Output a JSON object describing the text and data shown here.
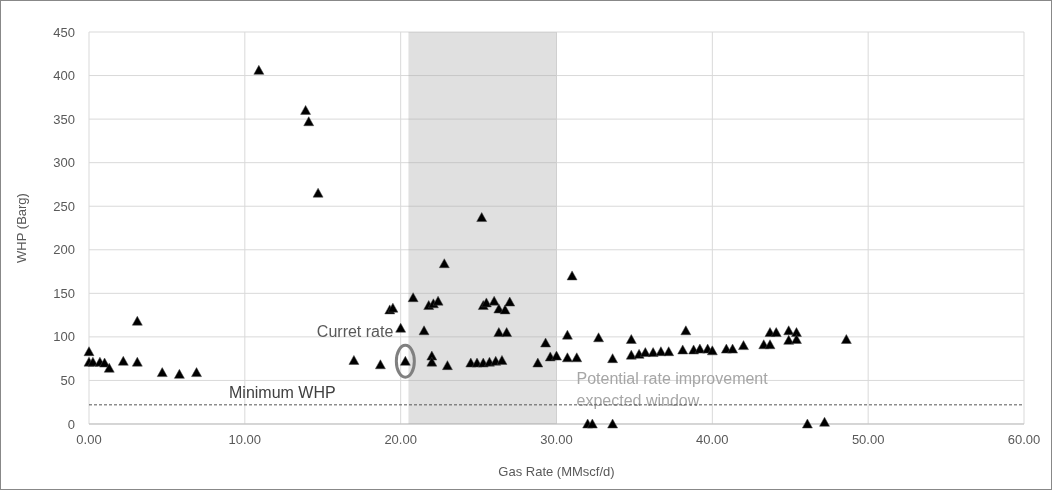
{
  "chart_data": {
    "type": "scatter",
    "xlabel": "Gas Rate (MMscf/d)",
    "ylabel": "WHP (Barg)",
    "xlim": [
      0,
      60
    ],
    "xticks": [
      {
        "value": 0,
        "label": "0.00"
      },
      {
        "value": 10,
        "label": "10.00"
      },
      {
        "value": 20,
        "label": "20.00"
      },
      {
        "value": 30,
        "label": "30.00"
      },
      {
        "value": 40,
        "label": "40.00"
      },
      {
        "value": 50,
        "label": "50.00"
      },
      {
        "value": 60,
        "label": "60.00"
      }
    ],
    "ylim": [
      0,
      450
    ],
    "yticks": [
      0,
      50,
      100,
      150,
      200,
      250,
      300,
      350,
      400,
      450
    ],
    "grid": true,
    "marker": "triangle",
    "series": [
      {
        "color": "#000000",
        "x": [
          0,
          0,
          0.25,
          0.7,
          1,
          1.3,
          2.2,
          3.1,
          3.1,
          4.7,
          5.8,
          6.9,
          10.9,
          13.9,
          14.1,
          14.7,
          17,
          18.7,
          19.3,
          19.5,
          20,
          20.3,
          20.8,
          21.5,
          21.8,
          22.1,
          22.4,
          22,
          22,
          23,
          22.8,
          24.5,
          24.9,
          25.3,
          25.7,
          26.1,
          26.5,
          25.2,
          25.3,
          25.5,
          26,
          26.3,
          26.7,
          27,
          26.3,
          26.8,
          28.8,
          29.3,
          29.6,
          30,
          30.7,
          30.7,
          31,
          31.3,
          32,
          32.3,
          33.6,
          32.7,
          33.6,
          34.8,
          34.8,
          35.3,
          35.7,
          36.2,
          36.7,
          37.2,
          38.3,
          38.1,
          38.8,
          39.2,
          39.7,
          40,
          40.9,
          41.3,
          42,
          43.3,
          43.7,
          43.7,
          44.1,
          44.9,
          45.4,
          44.9,
          45.4,
          46.1,
          47.2,
          48.6
        ],
        "values": [
          83,
          71,
          71,
          71,
          70,
          64,
          72,
          118,
          71,
          59,
          57,
          59,
          406,
          360,
          347,
          265,
          73,
          68,
          131,
          133,
          110,
          72,
          145,
          107,
          136,
          138,
          141,
          78,
          71,
          67,
          184,
          70,
          70,
          70,
          71,
          72,
          73,
          237,
          136,
          139,
          141,
          132,
          131,
          140,
          105,
          105,
          70,
          93,
          77,
          78,
          76,
          102,
          170,
          76,
          0,
          0,
          0,
          99,
          75,
          97,
          79,
          80,
          82,
          82,
          83,
          83,
          107,
          85,
          85,
          86,
          86,
          84,
          86,
          86,
          90,
          91,
          91,
          105,
          105,
          107,
          105,
          96,
          97,
          0,
          2,
          97
        ]
      }
    ],
    "ref_lines": [
      {
        "axis": "y",
        "value": 22,
        "label": "Minimum WHP",
        "line_style": "dashed",
        "color": "#555555"
      }
    ],
    "bands": [
      {
        "axis": "x",
        "from": 20.5,
        "to": 30,
        "label": "Potential rate improvement expected window",
        "color": "#a6a6a6"
      }
    ],
    "annotations": [
      {
        "text": "Curret rate",
        "x": 20.3,
        "y": 72
      }
    ]
  }
}
